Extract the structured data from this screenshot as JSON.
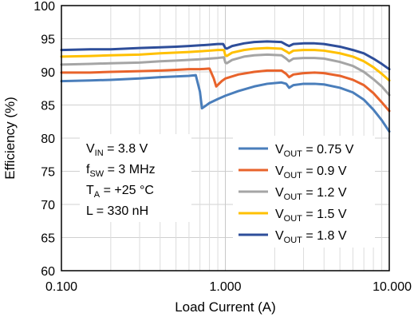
{
  "chart_data": {
    "type": "line",
    "title": "",
    "xlabel": "Load Current (A)",
    "ylabel": "Efficiency (%)",
    "xscale": "log",
    "xlim": [
      0.1,
      10
    ],
    "ylim": [
      60,
      100
    ],
    "grid": true,
    "x_ticks": [
      {
        "value": 0.1,
        "label": "0.100"
      },
      {
        "value": 1,
        "label": "1.000"
      },
      {
        "value": 10,
        "label": "10.000"
      }
    ],
    "y_ticks": [
      60,
      65,
      70,
      75,
      80,
      85,
      90,
      95,
      100
    ],
    "annotation": {
      "lines": [
        {
          "main": "V",
          "sub": "IN",
          "rest": " = 3.8 V"
        },
        {
          "main": "f",
          "sub": "SW",
          "rest": " = 3 MHz"
        },
        {
          "main": "T",
          "sub": "A",
          "rest": " = +25 °C"
        },
        {
          "main": "L = 330 nH",
          "sub": "",
          "rest": ""
        }
      ]
    },
    "legend_position": "bottom-right",
    "series": [
      {
        "name": "V_OUT = 0.75 V",
        "legend": {
          "main": "V",
          "sub": "OUT",
          "rest": " = 0.75 V"
        },
        "color": "#4a7ebb",
        "points": [
          [
            0.1,
            88.6
          ],
          [
            0.15,
            88.7
          ],
          [
            0.2,
            88.8
          ],
          [
            0.3,
            89.0
          ],
          [
            0.4,
            89.2
          ],
          [
            0.5,
            89.3
          ],
          [
            0.6,
            89.4
          ],
          [
            0.66,
            89.5
          ],
          [
            0.7,
            87.0
          ],
          [
            0.72,
            84.5
          ],
          [
            0.75,
            84.8
          ],
          [
            0.8,
            85.3
          ],
          [
            0.9,
            85.9
          ],
          [
            1.0,
            86.4
          ],
          [
            1.2,
            87.1
          ],
          [
            1.5,
            87.8
          ],
          [
            1.8,
            88.2
          ],
          [
            2.2,
            88.4
          ],
          [
            2.35,
            88.2
          ],
          [
            2.45,
            87.6
          ],
          [
            2.6,
            88.0
          ],
          [
            3.0,
            88.2
          ],
          [
            3.5,
            88.2
          ],
          [
            4.0,
            88.1
          ],
          [
            5.0,
            87.6
          ],
          [
            6.0,
            86.9
          ],
          [
            7.0,
            85.8
          ],
          [
            8.0,
            84.3
          ],
          [
            9.0,
            82.7
          ],
          [
            10.0,
            81.0
          ]
        ]
      },
      {
        "name": "V_OUT = 0.9 V",
        "legend": {
          "main": "V",
          "sub": "OUT",
          "rest": " = 0.9 V"
        },
        "color": "#e8632b",
        "points": [
          [
            0.1,
            89.9
          ],
          [
            0.15,
            89.9
          ],
          [
            0.2,
            90.0
          ],
          [
            0.3,
            90.1
          ],
          [
            0.4,
            90.2
          ],
          [
            0.5,
            90.3
          ],
          [
            0.6,
            90.4
          ],
          [
            0.7,
            90.4
          ],
          [
            0.8,
            90.5
          ],
          [
            0.85,
            89.0
          ],
          [
            0.88,
            87.8
          ],
          [
            0.95,
            88.6
          ],
          [
            1.0,
            89.0
          ],
          [
            1.2,
            89.6
          ],
          [
            1.5,
            90.0
          ],
          [
            1.8,
            90.2
          ],
          [
            2.2,
            90.2
          ],
          [
            2.35,
            89.7
          ],
          [
            2.45,
            89.2
          ],
          [
            2.6,
            89.6
          ],
          [
            3.0,
            89.8
          ],
          [
            3.5,
            89.9
          ],
          [
            4.0,
            89.8
          ],
          [
            5.0,
            89.4
          ],
          [
            6.0,
            88.8
          ],
          [
            7.0,
            88.0
          ],
          [
            8.0,
            86.8
          ],
          [
            9.0,
            85.4
          ],
          [
            10.0,
            84.1
          ]
        ]
      },
      {
        "name": "V_OUT = 1.2 V",
        "legend": {
          "main": "V",
          "sub": "OUT",
          "rest": " = 1.2 V"
        },
        "color": "#a5a5a5",
        "points": [
          [
            0.1,
            91.1
          ],
          [
            0.15,
            91.2
          ],
          [
            0.2,
            91.3
          ],
          [
            0.3,
            91.4
          ],
          [
            0.4,
            91.6
          ],
          [
            0.5,
            91.7
          ],
          [
            0.6,
            91.8
          ],
          [
            0.7,
            91.9
          ],
          [
            0.8,
            92.0
          ],
          [
            0.9,
            92.1
          ],
          [
            0.98,
            92.2
          ],
          [
            1.0,
            91.4
          ],
          [
            1.02,
            91.3
          ],
          [
            1.1,
            91.8
          ],
          [
            1.3,
            92.3
          ],
          [
            1.5,
            92.5
          ],
          [
            1.8,
            92.6
          ],
          [
            2.2,
            92.5
          ],
          [
            2.35,
            92.0
          ],
          [
            2.45,
            91.6
          ],
          [
            2.6,
            92.0
          ],
          [
            3.0,
            92.1
          ],
          [
            3.5,
            92.1
          ],
          [
            4.0,
            92.0
          ],
          [
            5.0,
            91.5
          ],
          [
            6.0,
            90.9
          ],
          [
            7.0,
            90.0
          ],
          [
            8.0,
            88.9
          ],
          [
            9.0,
            87.8
          ],
          [
            10.0,
            86.5
          ]
        ]
      },
      {
        "name": "V_OUT = 1.5 V",
        "legend": {
          "main": "V",
          "sub": "OUT",
          "rest": " = 1.5 V"
        },
        "color": "#ffc000",
        "points": [
          [
            0.1,
            92.3
          ],
          [
            0.15,
            92.4
          ],
          [
            0.2,
            92.5
          ],
          [
            0.3,
            92.6
          ],
          [
            0.4,
            92.8
          ],
          [
            0.5,
            92.9
          ],
          [
            0.6,
            93.0
          ],
          [
            0.7,
            93.1
          ],
          [
            0.8,
            93.2
          ],
          [
            0.9,
            93.3
          ],
          [
            0.98,
            93.3
          ],
          [
            1.0,
            92.5
          ],
          [
            1.02,
            92.4
          ],
          [
            1.1,
            92.9
          ],
          [
            1.3,
            93.3
          ],
          [
            1.5,
            93.5
          ],
          [
            1.8,
            93.6
          ],
          [
            2.2,
            93.5
          ],
          [
            2.35,
            93.1
          ],
          [
            2.45,
            92.8
          ],
          [
            2.6,
            93.2
          ],
          [
            3.0,
            93.3
          ],
          [
            3.5,
            93.3
          ],
          [
            4.0,
            93.2
          ],
          [
            5.0,
            92.8
          ],
          [
            6.0,
            92.3
          ],
          [
            7.0,
            91.6
          ],
          [
            8.0,
            90.7
          ],
          [
            9.0,
            89.7
          ],
          [
            10.0,
            88.7
          ]
        ]
      },
      {
        "name": "V_OUT = 1.8 V",
        "legend": {
          "main": "V",
          "sub": "OUT",
          "rest": " = 1.8 V"
        },
        "color": "#2e4e9a",
        "points": [
          [
            0.1,
            93.3
          ],
          [
            0.15,
            93.4
          ],
          [
            0.2,
            93.4
          ],
          [
            0.3,
            93.6
          ],
          [
            0.4,
            93.7
          ],
          [
            0.5,
            93.8
          ],
          [
            0.6,
            93.9
          ],
          [
            0.7,
            94.0
          ],
          [
            0.8,
            94.1
          ],
          [
            0.9,
            94.2
          ],
          [
            0.97,
            94.2
          ],
          [
            1.0,
            93.6
          ],
          [
            1.02,
            93.5
          ],
          [
            1.1,
            93.9
          ],
          [
            1.3,
            94.3
          ],
          [
            1.5,
            94.5
          ],
          [
            1.8,
            94.6
          ],
          [
            2.2,
            94.5
          ],
          [
            2.35,
            94.1
          ],
          [
            2.45,
            93.9
          ],
          [
            2.6,
            94.2
          ],
          [
            3.0,
            94.3
          ],
          [
            3.5,
            94.3
          ],
          [
            4.0,
            94.2
          ],
          [
            5.0,
            93.8
          ],
          [
            6.0,
            93.3
          ],
          [
            7.0,
            92.8
          ],
          [
            8.0,
            92.0
          ],
          [
            9.0,
            91.2
          ],
          [
            10.0,
            90.4
          ]
        ]
      }
    ]
  }
}
